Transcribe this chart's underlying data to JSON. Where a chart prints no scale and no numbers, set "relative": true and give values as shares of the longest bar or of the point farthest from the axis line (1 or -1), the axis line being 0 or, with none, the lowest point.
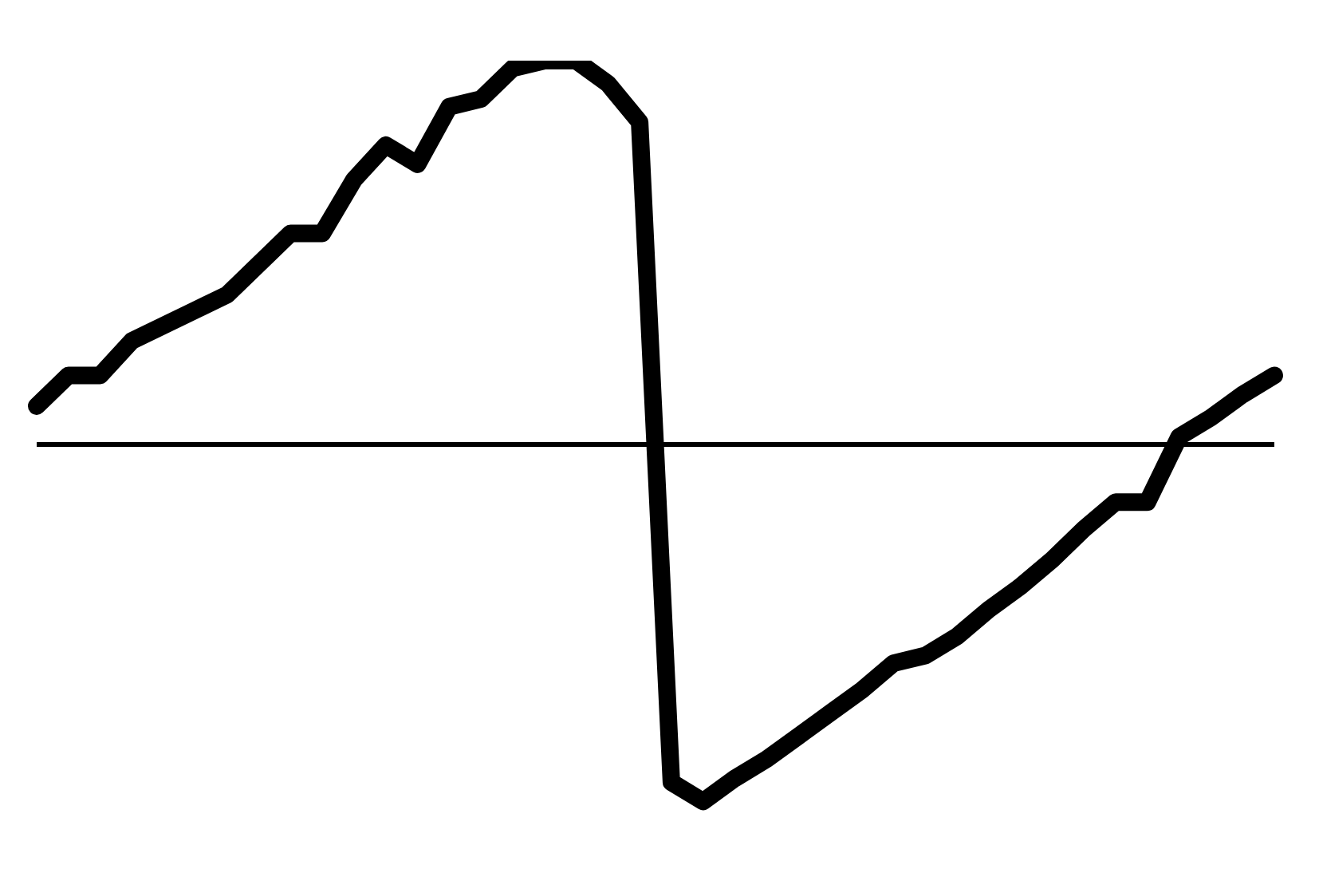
{
  "chart_data": {
    "type": "line",
    "relative": true,
    "categories": [
      null,
      null,
      null,
      null,
      null,
      null,
      null,
      null,
      null,
      null,
      null,
      null,
      null,
      null,
      null,
      null,
      null,
      null,
      null,
      null,
      null,
      null,
      null,
      null,
      null,
      null,
      null,
      null,
      null,
      null,
      null,
      null,
      null,
      null,
      null,
      null,
      null,
      null,
      null,
      null
    ],
    "series": [
      {
        "color": "#000000",
        "values": [
          0.1,
          0.18,
          0.18,
          0.27,
          0.31,
          0.35,
          0.39,
          0.47,
          0.55,
          0.55,
          0.69,
          0.78,
          0.73,
          0.88,
          0.9,
          0.98,
          1,
          1,
          0.94,
          0.84,
          -0.88,
          -0.93,
          -0.87,
          -0.82,
          -0.76,
          -0.7,
          -0.64,
          -0.57,
          -0.55,
          -0.5,
          -0.43,
          -0.37,
          -0.3,
          -0.22,
          -0.15,
          -0.15,
          0.02,
          0.07,
          0.13,
          0.18
        ]
      }
    ],
    "marker": "none",
    "line_style": "solid",
    "grid": false,
    "legend": false
  }
}
